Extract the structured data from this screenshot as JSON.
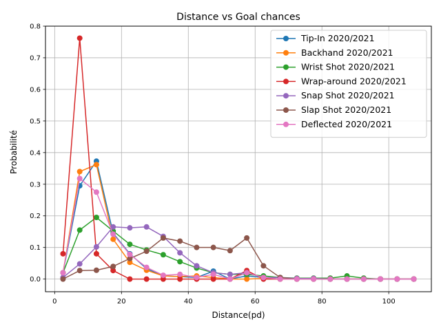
{
  "chart_data": {
    "type": "line",
    "title": "Distance vs Goal chances",
    "xlabel": "Distance(pd)",
    "ylabel": "Probabilité",
    "xlim": [
      -2.75,
      112.75
    ],
    "ylim": [
      -0.04,
      0.8
    ],
    "xticks": [
      0,
      20,
      40,
      60,
      80,
      100
    ],
    "yticks": [
      0.0,
      0.1,
      0.2,
      0.3,
      0.4,
      0.5,
      0.6,
      0.7,
      0.8
    ],
    "xtick_labels": [
      "0",
      "20",
      "40",
      "60",
      "80",
      "100"
    ],
    "ytick_labels": [
      "0.0",
      "0.1",
      "0.2",
      "0.3",
      "0.4",
      "0.5",
      "0.6",
      "0.7",
      "0.8"
    ],
    "grid": true,
    "legend_position": "top-right",
    "x": [
      2.5,
      7.5,
      12.5,
      17.5,
      22.5,
      27.5,
      32.5,
      37.5,
      42.5,
      47.5,
      52.5,
      57.5,
      62.5,
      67.5,
      72.5,
      77.5,
      82.5,
      87.5,
      92.5,
      97.5,
      102.5,
      107.5
    ],
    "series": [
      {
        "name": "Tip-In 2020/2021",
        "color": "#1f77b4",
        "values": [
          0.02,
          0.295,
          0.373,
          0.145,
          0.08,
          0.033,
          0.01,
          0.008,
          0.005,
          0.025,
          0.0,
          0.01,
          0.005,
          0.0,
          0.0,
          0.0,
          0.0,
          0.0,
          0.0,
          0.0,
          0.0,
          0.0
        ]
      },
      {
        "name": "Backhand 2020/2021",
        "color": "#ff7f0e",
        "values": [
          0.02,
          0.34,
          0.362,
          0.126,
          0.053,
          0.028,
          0.01,
          0.008,
          0.01,
          0.005,
          0.0,
          0.0,
          0.002,
          0.0,
          0.0,
          0.0,
          0.0,
          0.0,
          0.0,
          0.0,
          0.0,
          0.0
        ]
      },
      {
        "name": "Wrist Shot 2020/2021",
        "color": "#2ca02c",
        "values": [
          0.02,
          0.155,
          0.195,
          0.152,
          0.11,
          0.092,
          0.077,
          0.055,
          0.035,
          0.02,
          0.015,
          0.015,
          0.01,
          0.005,
          0.003,
          0.003,
          0.003,
          0.01,
          0.003,
          0.0,
          0.0,
          0.0
        ]
      },
      {
        "name": "Wrap-around 2020/2021",
        "color": "#d62728",
        "values": [
          0.08,
          0.762,
          0.08,
          0.027,
          0.0,
          0.0,
          0.0,
          0.0,
          0.0,
          0.0,
          0.0,
          0.027,
          0.0,
          0.0,
          0.0,
          0.0,
          0.0,
          0.0,
          0.0,
          0.0,
          0.0,
          0.0
        ]
      },
      {
        "name": "Snap Shot 2020/2021",
        "color": "#9467bd",
        "values": [
          0.005,
          0.048,
          0.102,
          0.165,
          0.162,
          0.165,
          0.135,
          0.083,
          0.042,
          0.02,
          0.015,
          0.02,
          0.005,
          0.005,
          0.002,
          0.002,
          0.0,
          0.0,
          0.0,
          0.0,
          0.0,
          0.0
        ]
      },
      {
        "name": "Slap Shot 2020/2021",
        "color": "#8c564b",
        "values": [
          0.0,
          0.027,
          0.028,
          0.04,
          0.065,
          0.088,
          0.13,
          0.12,
          0.1,
          0.1,
          0.09,
          0.13,
          0.042,
          0.005,
          0.0,
          0.0,
          0.0,
          0.0,
          0.0,
          0.0,
          0.0,
          0.0
        ]
      },
      {
        "name": "Deflected 2020/2021",
        "color": "#e377c2",
        "values": [
          0.02,
          0.318,
          0.275,
          0.142,
          0.078,
          0.037,
          0.012,
          0.015,
          0.005,
          0.015,
          0.0,
          0.02,
          0.005,
          0.0,
          0.0,
          0.0,
          0.0,
          0.0,
          0.0,
          0.0,
          0.0,
          0.0
        ]
      }
    ]
  }
}
